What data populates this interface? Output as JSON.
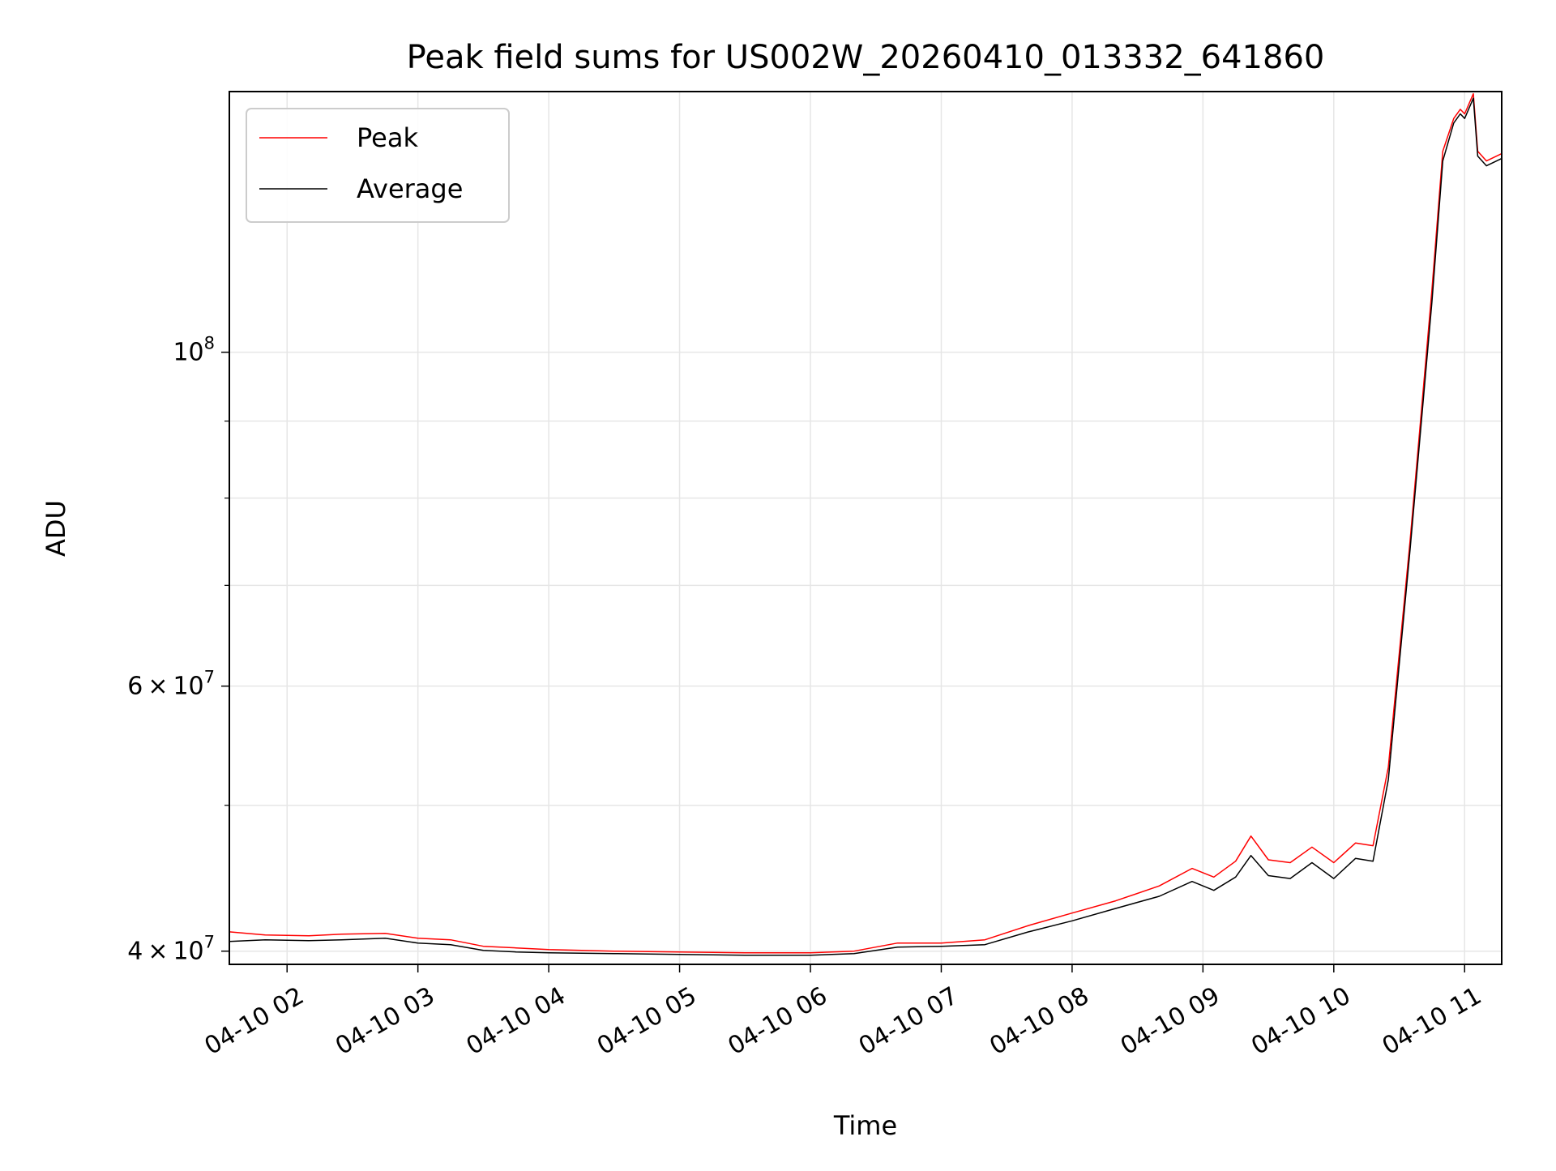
{
  "chart_data": {
    "type": "line",
    "title": "Peak field sums for US002W_20260410_013332_641860",
    "xlabel": "Time",
    "ylabel": "ADU",
    "x_scale": "time",
    "y_scale": "log",
    "xlim": [
      "2026-04-10T01:33:32",
      "2026-04-10T11:17:00"
    ],
    "ylim": [
      39200000,
      149000000
    ],
    "grid": true,
    "legend": "upper left",
    "colors": {
      "Peak": "#ff0000",
      "Average": "#000000"
    },
    "x_ticks": [
      {
        "t": "2026-04-10T02:00:00",
        "label": "04-10 02"
      },
      {
        "t": "2026-04-10T03:00:00",
        "label": "04-10 03"
      },
      {
        "t": "2026-04-10T04:00:00",
        "label": "04-10 04"
      },
      {
        "t": "2026-04-10T05:00:00",
        "label": "04-10 05"
      },
      {
        "t": "2026-04-10T06:00:00",
        "label": "04-10 06"
      },
      {
        "t": "2026-04-10T07:00:00",
        "label": "04-10 07"
      },
      {
        "t": "2026-04-10T08:00:00",
        "label": "04-10 08"
      },
      {
        "t": "2026-04-10T09:00:00",
        "label": "04-10 09"
      },
      {
        "t": "2026-04-10T10:00:00",
        "label": "04-10 10"
      },
      {
        "t": "2026-04-10T11:00:00",
        "label": "04-10 11"
      }
    ],
    "y_ticks_major": [
      {
        "value": 40000000,
        "base": "4",
        "times": "×",
        "power_base": "10",
        "exp": "7"
      },
      {
        "value": 60000000,
        "base": "6",
        "times": "×",
        "power_base": "10",
        "exp": "7"
      },
      {
        "value": 100000000,
        "base": "",
        "times": "",
        "power_base": "10",
        "exp": "8"
      }
    ],
    "y_ticks_minor": [
      50000000,
      70000000,
      80000000,
      90000000
    ],
    "series": [
      {
        "name": "Peak",
        "points": [
          [
            "2026-04-10T01:33:32",
            41200000
          ],
          [
            "2026-04-10T01:50:00",
            41000000
          ],
          [
            "2026-04-10T02:10:00",
            40950000
          ],
          [
            "2026-04-10T02:25:00",
            41050000
          ],
          [
            "2026-04-10T02:45:00",
            41100000
          ],
          [
            "2026-04-10T03:00:00",
            40800000
          ],
          [
            "2026-04-10T03:15:00",
            40700000
          ],
          [
            "2026-04-10T03:30:00",
            40300000
          ],
          [
            "2026-04-10T03:45:00",
            40200000
          ],
          [
            "2026-04-10T04:00:00",
            40100000
          ],
          [
            "2026-04-10T04:30:00",
            40000000
          ],
          [
            "2026-04-10T05:00:00",
            39950000
          ],
          [
            "2026-04-10T05:30:00",
            39900000
          ],
          [
            "2026-04-10T06:00:00",
            39900000
          ],
          [
            "2026-04-10T06:20:00",
            40000000
          ],
          [
            "2026-04-10T06:40:00",
            40500000
          ],
          [
            "2026-04-10T07:00:00",
            40500000
          ],
          [
            "2026-04-10T07:20:00",
            40700000
          ],
          [
            "2026-04-10T07:40:00",
            41600000
          ],
          [
            "2026-04-10T08:00:00",
            42400000
          ],
          [
            "2026-04-10T08:20:00",
            43200000
          ],
          [
            "2026-04-10T08:40:00",
            44200000
          ],
          [
            "2026-04-10T08:55:00",
            45400000
          ],
          [
            "2026-04-10T09:05:00",
            44800000
          ],
          [
            "2026-04-10T09:15:00",
            45900000
          ],
          [
            "2026-04-10T09:22:00",
            47700000
          ],
          [
            "2026-04-10T09:30:00",
            46000000
          ],
          [
            "2026-04-10T09:40:00",
            45800000
          ],
          [
            "2026-04-10T09:50:00",
            46900000
          ],
          [
            "2026-04-10T10:00:00",
            45800000
          ],
          [
            "2026-04-10T10:10:00",
            47200000
          ],
          [
            "2026-04-10T10:18:00",
            47000000
          ],
          [
            "2026-04-10T10:25:00",
            53000000
          ],
          [
            "2026-04-10T10:35:00",
            75000000
          ],
          [
            "2026-04-10T10:45:00",
            110000000
          ],
          [
            "2026-04-10T10:50:00",
            136000000
          ],
          [
            "2026-04-10T10:55:00",
            143000000
          ],
          [
            "2026-04-10T10:58:00",
            145000000
          ],
          [
            "2026-04-10T11:00:00",
            144000000
          ],
          [
            "2026-04-10T11:04:00",
            148500000
          ],
          [
            "2026-04-10T11:06:00",
            136000000
          ],
          [
            "2026-04-10T11:10:00",
            134000000
          ],
          [
            "2026-04-10T11:17:00",
            135500000
          ]
        ]
      },
      {
        "name": "Average",
        "points": [
          [
            "2026-04-10T01:33:32",
            40600000
          ],
          [
            "2026-04-10T01:50:00",
            40700000
          ],
          [
            "2026-04-10T02:10:00",
            40650000
          ],
          [
            "2026-04-10T02:25:00",
            40700000
          ],
          [
            "2026-04-10T02:45:00",
            40800000
          ],
          [
            "2026-04-10T03:00:00",
            40500000
          ],
          [
            "2026-04-10T03:15:00",
            40400000
          ],
          [
            "2026-04-10T03:30:00",
            40050000
          ],
          [
            "2026-04-10T03:45:00",
            39950000
          ],
          [
            "2026-04-10T04:00:00",
            39900000
          ],
          [
            "2026-04-10T04:30:00",
            39850000
          ],
          [
            "2026-04-10T05:00:00",
            39800000
          ],
          [
            "2026-04-10T05:30:00",
            39750000
          ],
          [
            "2026-04-10T06:00:00",
            39750000
          ],
          [
            "2026-04-10T06:20:00",
            39850000
          ],
          [
            "2026-04-10T06:40:00",
            40250000
          ],
          [
            "2026-04-10T07:00:00",
            40300000
          ],
          [
            "2026-04-10T07:20:00",
            40400000
          ],
          [
            "2026-04-10T07:40:00",
            41200000
          ],
          [
            "2026-04-10T08:00:00",
            41900000
          ],
          [
            "2026-04-10T08:20:00",
            42700000
          ],
          [
            "2026-04-10T08:40:00",
            43500000
          ],
          [
            "2026-04-10T08:55:00",
            44500000
          ],
          [
            "2026-04-10T09:05:00",
            43900000
          ],
          [
            "2026-04-10T09:15:00",
            44800000
          ],
          [
            "2026-04-10T09:22:00",
            46300000
          ],
          [
            "2026-04-10T09:30:00",
            44900000
          ],
          [
            "2026-04-10T09:40:00",
            44700000
          ],
          [
            "2026-04-10T09:50:00",
            45800000
          ],
          [
            "2026-04-10T10:00:00",
            44700000
          ],
          [
            "2026-04-10T10:10:00",
            46100000
          ],
          [
            "2026-04-10T10:18:00",
            45900000
          ],
          [
            "2026-04-10T10:25:00",
            52000000
          ],
          [
            "2026-04-10T10:35:00",
            74000000
          ],
          [
            "2026-04-10T10:45:00",
            108000000
          ],
          [
            "2026-04-10T10:50:00",
            134000000
          ],
          [
            "2026-04-10T10:55:00",
            142000000
          ],
          [
            "2026-04-10T10:58:00",
            144000000
          ],
          [
            "2026-04-10T11:00:00",
            143000000
          ],
          [
            "2026-04-10T11:04:00",
            147500000
          ],
          [
            "2026-04-10T11:06:00",
            135000000
          ],
          [
            "2026-04-10T11:10:00",
            133000000
          ],
          [
            "2026-04-10T11:17:00",
            134500000
          ]
        ]
      }
    ]
  }
}
